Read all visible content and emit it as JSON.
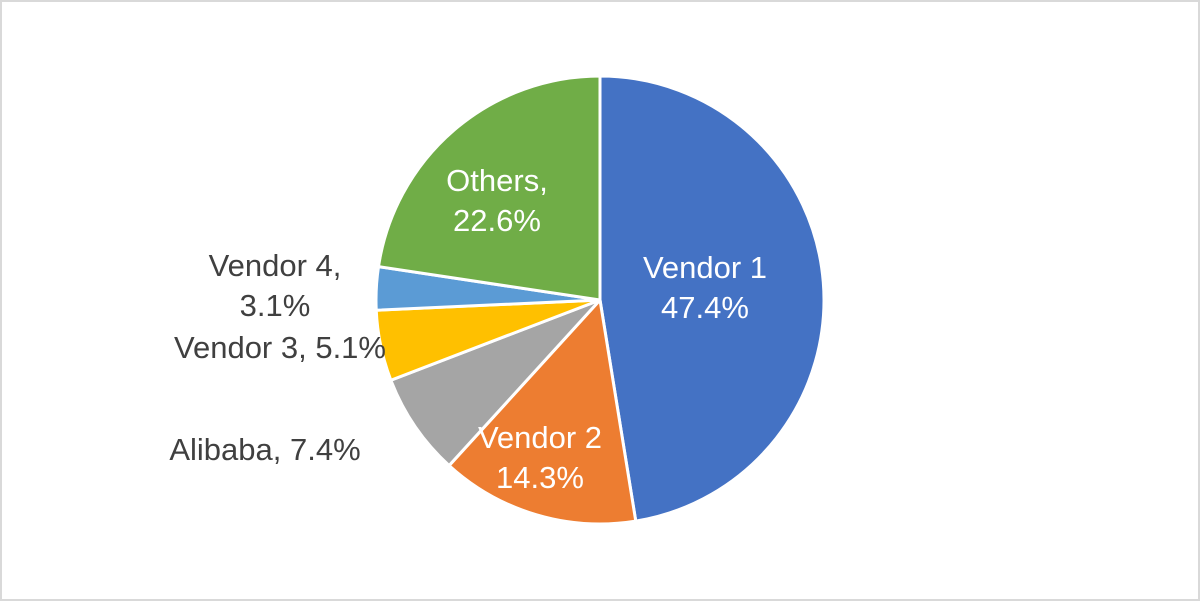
{
  "chart_data": {
    "type": "pie",
    "values": [
      47.4,
      14.3,
      7.4,
      5.1,
      3.1,
      22.6
    ],
    "value_labels": [
      [
        "Vendor 1",
        "47.4%"
      ],
      [
        "Vendor 2",
        "14.3%"
      ],
      [
        "Alibaba, 7.4%"
      ],
      [
        "Vendor 3, 5.1%"
      ],
      [
        "Vendor 4,",
        "3.1%"
      ],
      [
        "Others,",
        "22.6%"
      ]
    ],
    "colors": [
      "#4472c4",
      "#ed7d31",
      "#a5a5a5",
      "#ffc000",
      "#5b9bd5",
      "#70ad47"
    ]
  }
}
